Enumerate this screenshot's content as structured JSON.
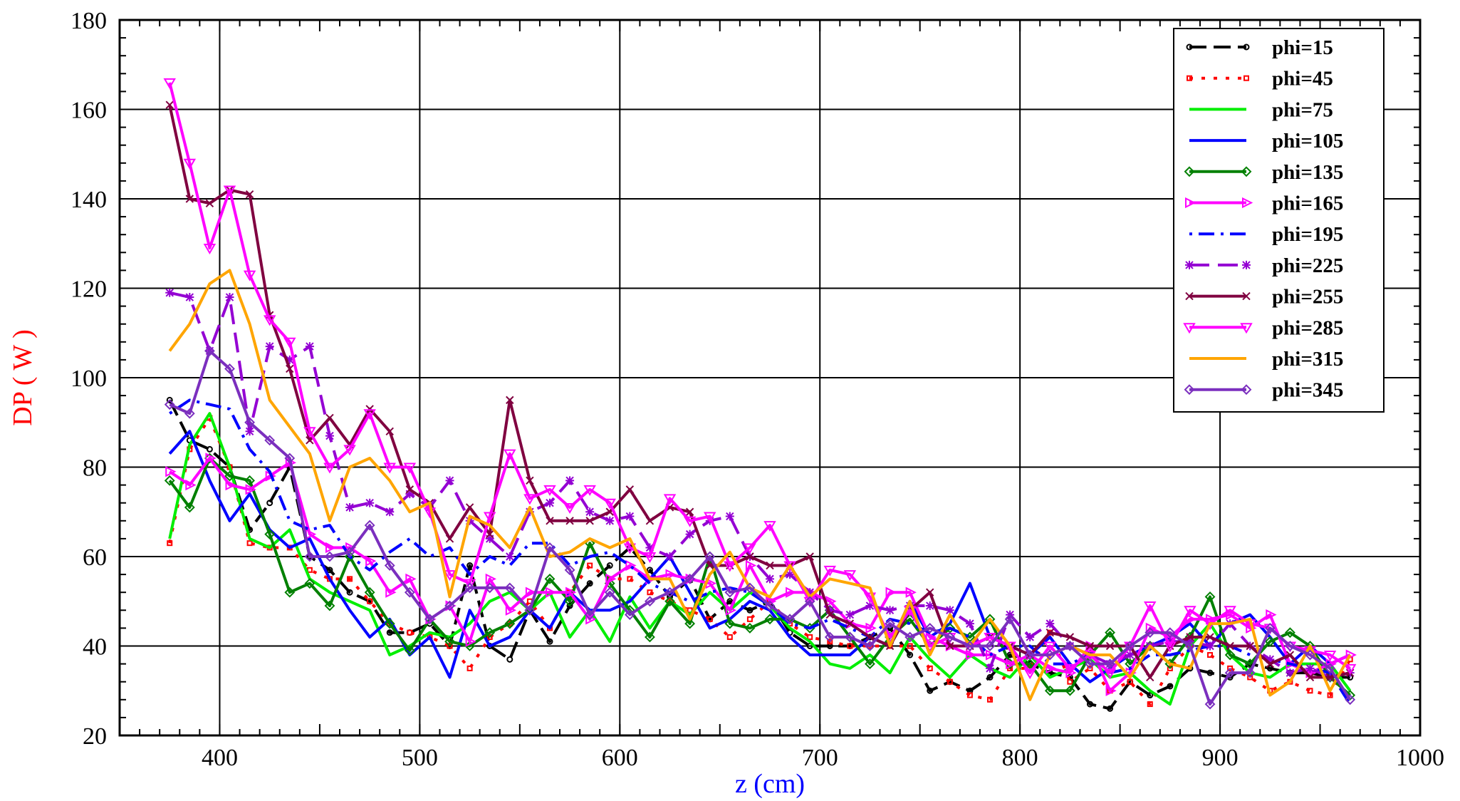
{
  "chart_data": {
    "type": "line",
    "xlabel": "z (cm)",
    "ylabel": "DP ( W )",
    "xlim": [
      350,
      1000
    ],
    "ylim": [
      20,
      180
    ],
    "xticks": [
      400,
      500,
      600,
      700,
      800,
      900,
      1000
    ],
    "yticks": [
      20,
      40,
      60,
      80,
      100,
      120,
      140,
      160,
      180
    ],
    "grid": true,
    "legend_position": "top-right",
    "colors": {
      "xlabel": "#0000ff",
      "ylabel": "#ff0000"
    },
    "x": [
      375,
      385,
      395,
      405,
      415,
      425,
      435,
      445,
      455,
      465,
      475,
      485,
      495,
      505,
      515,
      525,
      535,
      545,
      555,
      565,
      575,
      585,
      595,
      605,
      615,
      625,
      635,
      645,
      655,
      665,
      675,
      685,
      695,
      705,
      715,
      725,
      735,
      745,
      755,
      765,
      775,
      785,
      795,
      805,
      815,
      825,
      835,
      845,
      855,
      865,
      875,
      885,
      895,
      905,
      915,
      925,
      935,
      945,
      955,
      965
    ],
    "series": [
      {
        "name": "phi=15",
        "color": "#000000",
        "dash": "24 10",
        "marker": "circle",
        "values": [
          95,
          86,
          84,
          80,
          66,
          72,
          80,
          60,
          57,
          52,
          50,
          43,
          43,
          45,
          40,
          58,
          40,
          37,
          48,
          41,
          49,
          54,
          58,
          62,
          57,
          51,
          55,
          46,
          50,
          48,
          50,
          43,
          40,
          40,
          40,
          42,
          44,
          38,
          30,
          32,
          30,
          33,
          38,
          36,
          34,
          33,
          27,
          26,
          32,
          29,
          31,
          35,
          34,
          33,
          36,
          35,
          34,
          34,
          33,
          33
        ]
      },
      {
        "name": "phi=45",
        "color": "#ff0000",
        "dash": "5 12",
        "marker": "square",
        "values": [
          63,
          84,
          91,
          80,
          63,
          62,
          62,
          57,
          55,
          55,
          50,
          45,
          43,
          42,
          40,
          35,
          42,
          45,
          50,
          44,
          52,
          58,
          55,
          55,
          52,
          50,
          48,
          46,
          42,
          46,
          50,
          45,
          42,
          41,
          40,
          40,
          40,
          40,
          35,
          32,
          29,
          28,
          35,
          35,
          43,
          32,
          35,
          30,
          32,
          27,
          35,
          40,
          38,
          35,
          33,
          30,
          32,
          30,
          29,
          37
        ]
      },
      {
        "name": "phi=75",
        "color": "#00ee00",
        "dash": "",
        "marker": "none",
        "values": [
          64,
          85,
          92,
          80,
          64,
          62,
          66,
          55,
          52,
          50,
          48,
          38,
          40,
          43,
          42,
          45,
          50,
          52,
          48,
          52,
          42,
          48,
          41,
          51,
          44,
          50,
          47,
          52,
          48,
          52,
          49,
          44,
          41,
          36,
          35,
          38,
          34,
          42,
          37,
          33,
          38,
          35,
          33,
          38,
          33,
          35,
          37,
          33,
          34,
          30,
          27,
          40,
          45,
          38,
          34,
          33,
          36,
          36,
          36,
          30
        ]
      },
      {
        "name": "phi=105",
        "color": "#0000ff",
        "dash": "",
        "marker": "none",
        "values": [
          83,
          88,
          77,
          68,
          74,
          66,
          62,
          64,
          55,
          48,
          42,
          46,
          38,
          42,
          33,
          48,
          40,
          42,
          48,
          44,
          52,
          48,
          48,
          50,
          55,
          60,
          52,
          44,
          46,
          50,
          48,
          42,
          38,
          38,
          38,
          42,
          40,
          50,
          42,
          45,
          54,
          42,
          40,
          38,
          42,
          36,
          32,
          35,
          38,
          40,
          42,
          45,
          40,
          45,
          47,
          42,
          36,
          40,
          36,
          38
        ]
      },
      {
        "name": "phi=135",
        "color": "#008000",
        "dash": "",
        "marker": "diamond",
        "values": [
          77,
          71,
          82,
          78,
          77,
          65,
          52,
          54,
          49,
          60,
          52,
          45,
          39,
          46,
          41,
          40,
          43,
          45,
          48,
          55,
          50,
          63,
          54,
          48,
          42,
          50,
          45,
          60,
          45,
          44,
          46,
          46,
          44,
          48,
          42,
          36,
          42,
          46,
          40,
          44,
          42,
          46,
          36,
          36,
          30,
          30,
          38,
          43,
          36,
          40,
          36,
          42,
          51,
          38,
          36,
          41,
          43,
          40,
          33,
          29
        ]
      },
      {
        "name": "phi=165",
        "color": "#ff00ff",
        "dash": "",
        "marker": "triangle-right",
        "values": [
          79,
          76,
          82,
          76,
          75,
          78,
          81,
          65,
          62,
          62,
          59,
          52,
          55,
          46,
          49,
          41,
          55,
          48,
          52,
          52,
          52,
          46,
          55,
          58,
          55,
          56,
          55,
          54,
          48,
          58,
          50,
          52,
          52,
          50,
          45,
          44,
          52,
          52,
          42,
          40,
          38,
          38,
          36,
          38,
          35,
          34,
          40,
          30,
          34,
          44,
          42,
          46,
          46,
          47,
          44,
          47,
          36,
          34,
          36,
          38
        ]
      },
      {
        "name": "phi=195",
        "color": "#0000ff",
        "dash": "4 9 22 9",
        "marker": "none",
        "values": [
          92,
          95,
          94,
          93,
          84,
          79,
          68,
          66,
          67,
          60,
          57,
          61,
          64,
          60,
          62,
          56,
          60,
          58,
          63,
          63,
          58,
          60,
          61,
          58,
          54,
          52,
          50,
          52,
          53,
          52,
          49,
          45,
          44,
          46,
          44,
          42,
          46,
          45,
          43,
          44,
          42,
          38,
          40,
          40,
          36,
          36,
          38,
          34,
          35,
          38,
          38,
          39,
          40,
          40,
          38,
          37,
          36,
          35,
          34,
          27
        ]
      },
      {
        "name": "phi=225",
        "color": "#9400d3",
        "dash": "28 12",
        "marker": "star",
        "values": [
          119,
          118,
          106,
          118,
          88,
          107,
          104,
          107,
          87,
          71,
          72,
          70,
          74,
          71,
          77,
          68,
          64,
          60,
          70,
          72,
          77,
          70,
          68,
          69,
          62,
          60,
          65,
          68,
          69,
          60,
          55,
          56,
          52,
          48,
          47,
          49,
          48,
          49,
          49,
          48,
          45,
          35,
          47,
          42,
          45,
          40,
          38,
          36,
          38,
          40,
          41,
          41,
          40,
          45,
          40,
          37,
          34,
          35,
          33,
          34
        ]
      },
      {
        "name": "phi=255",
        "color": "#800040",
        "dash": "",
        "marker": "x",
        "values": [
          161,
          140,
          139,
          142,
          141,
          114,
          102,
          86,
          91,
          85,
          93,
          88,
          75,
          72,
          64,
          71,
          65,
          95,
          77,
          68,
          68,
          68,
          70,
          75,
          68,
          71,
          70,
          58,
          58,
          60,
          58,
          58,
          60,
          47,
          45,
          42,
          40,
          48,
          52,
          40,
          40,
          42,
          40,
          38,
          43,
          42,
          40,
          40,
          40,
          33,
          40,
          42,
          42,
          40,
          40,
          36,
          38,
          33,
          33,
          34
        ]
      },
      {
        "name": "phi=285",
        "color": "#ff00ff",
        "dash": "",
        "marker": "triangle-down",
        "values": [
          166,
          148,
          129,
          142,
          123,
          113,
          108,
          88,
          80,
          84,
          92,
          80,
          80,
          70,
          56,
          54,
          69,
          83,
          73,
          75,
          71,
          75,
          72,
          62,
          60,
          73,
          68,
          69,
          58,
          62,
          67,
          58,
          50,
          57,
          56,
          51,
          42,
          48,
          40,
          42,
          40,
          42,
          40,
          34,
          40,
          35,
          38,
          34,
          40,
          49,
          40,
          48,
          45,
          48,
          45,
          44,
          40,
          39,
          38,
          35
        ]
      },
      {
        "name": "phi=315",
        "color": "#ffa500",
        "dash": "",
        "marker": "none",
        "values": [
          106,
          112,
          121,
          124,
          112,
          95,
          89,
          83,
          68,
          80,
          82,
          77,
          70,
          72,
          51,
          69,
          67,
          62,
          71,
          60,
          61,
          64,
          62,
          64,
          55,
          55,
          46,
          56,
          61,
          53,
          51,
          58,
          51,
          55,
          54,
          53,
          40,
          50,
          38,
          47,
          40,
          46,
          40,
          28,
          38,
          40,
          38,
          38,
          33,
          40,
          36,
          35,
          45,
          45,
          46,
          29,
          32,
          40,
          30,
          38
        ]
      },
      {
        "name": "phi=345",
        "color": "#7b2fbe",
        "dash": "",
        "marker": "diamond",
        "values": [
          94,
          92,
          106,
          102,
          90,
          86,
          82,
          60,
          60,
          61,
          67,
          58,
          52,
          46,
          49,
          53,
          53,
          53,
          48,
          62,
          57,
          47,
          52,
          47,
          50,
          52,
          55,
          60,
          52,
          53,
          49,
          46,
          50,
          42,
          42,
          40,
          45,
          42,
          44,
          42,
          40,
          40,
          46,
          38,
          38,
          40,
          36,
          36,
          40,
          43,
          43,
          40,
          27,
          34,
          34,
          44,
          40,
          38,
          35,
          28
        ]
      }
    ]
  }
}
